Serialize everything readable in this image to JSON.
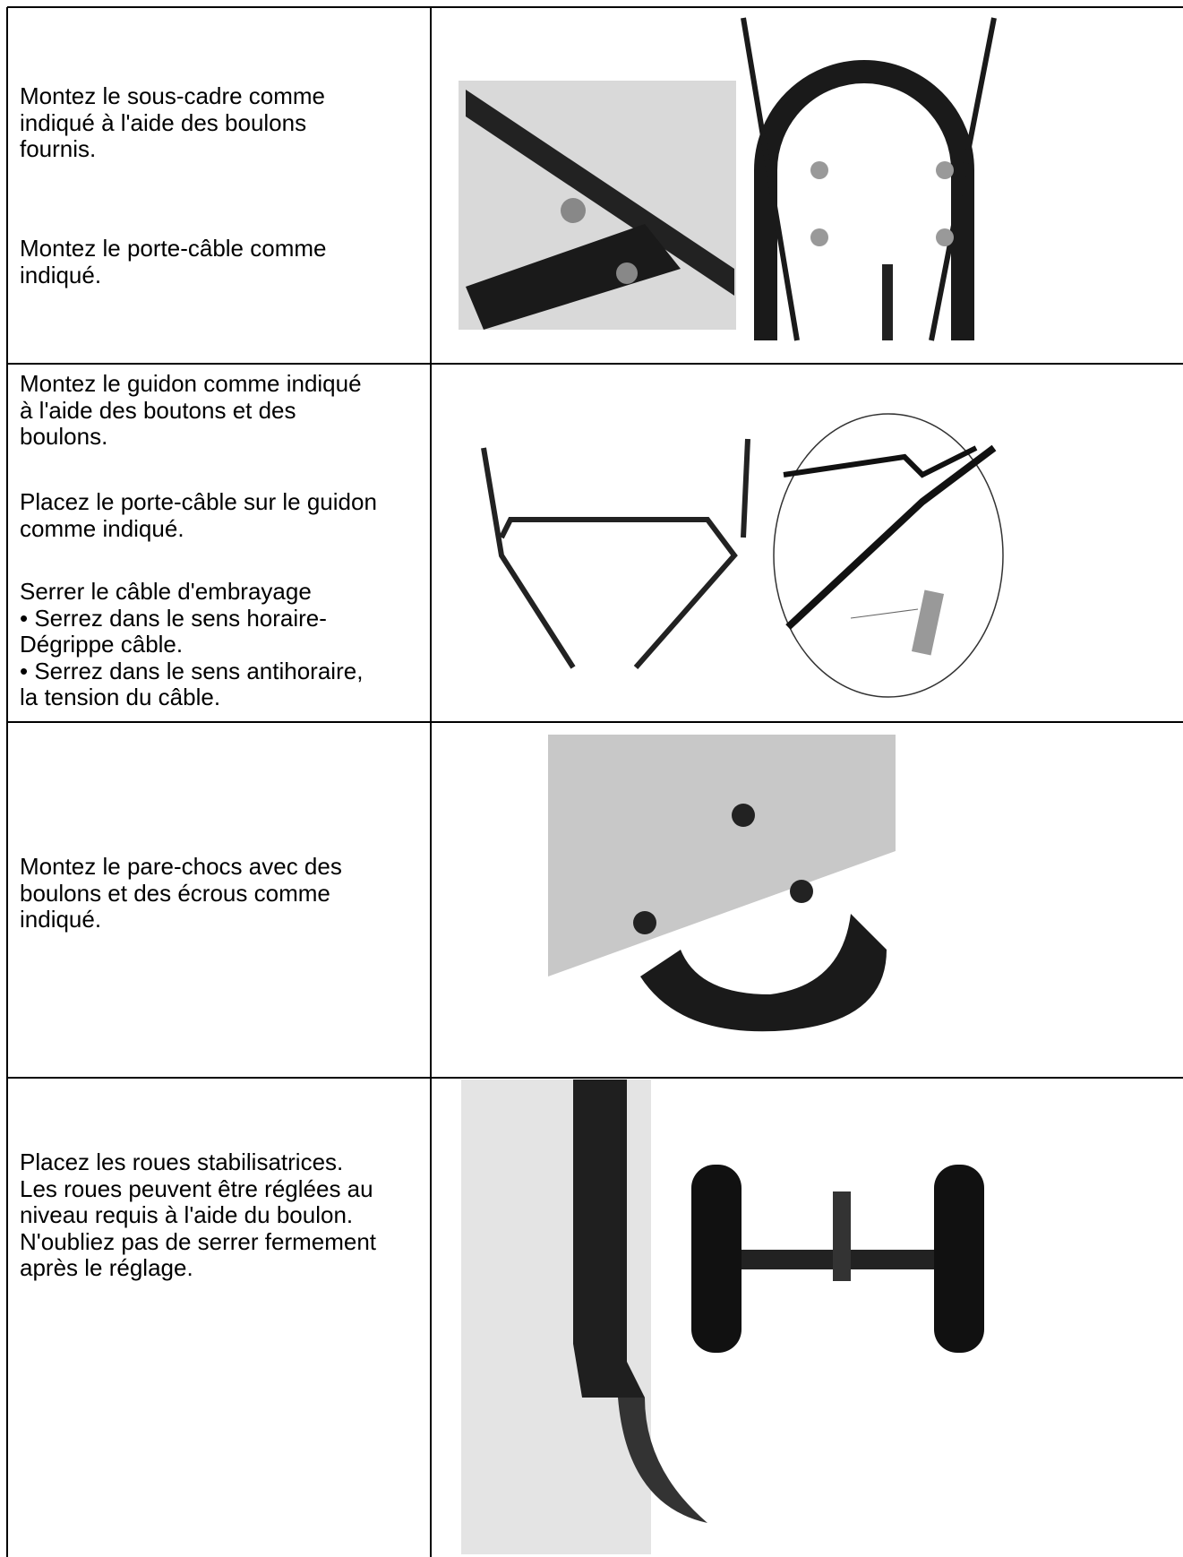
{
  "table": {
    "rows": [
      {
        "text": [
          [
            "Montez le sous-cadre comme",
            "indiqué à l'aide des boulons",
            "fournis."
          ],
          [
            "Montez le porte-câble comme",
            "indiqué."
          ]
        ]
      },
      {
        "text": [
          [
            "Montez le guidon comme indiqué",
            "à l'aide des boutons et des",
            "boulons."
          ],
          [
            "Placez le porte-câble sur le guidon",
            "comme indiqué."
          ],
          [
            "Serrer le câble d'embrayage",
            "• Serrez dans le sens horaire-",
            "Dégrippe câble.",
            "• Serrez dans le sens antihoraire,",
            "la tension du câble."
          ]
        ]
      },
      {
        "text": [
          [
            "Montez le pare-chocs avec des",
            "boulons et des écrous comme",
            "indiqué."
          ]
        ]
      },
      {
        "text": [
          [
            "Placez les roues stabilisatrices.",
            "Les roues peuvent être réglées au",
            "niveau requis à l'aide du boulon.",
            "N'oubliez pas de serrer fermement",
            "après le réglage."
          ]
        ]
      }
    ]
  }
}
